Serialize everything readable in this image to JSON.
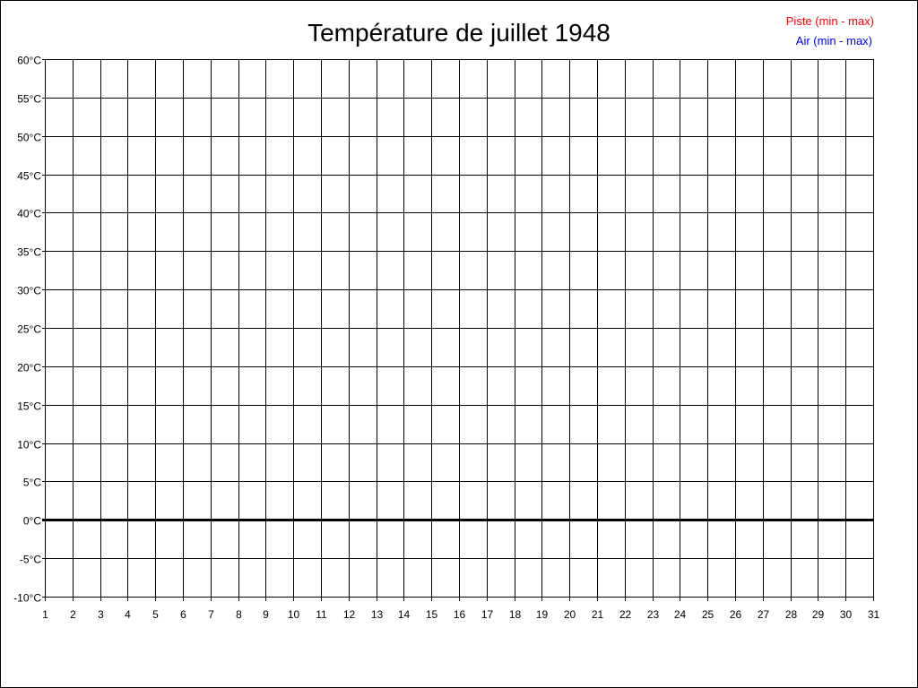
{
  "chart_data": {
    "type": "line",
    "title": "Température de juillet 1948",
    "xlabel": "",
    "ylabel": "",
    "x_ticks": [
      1,
      2,
      3,
      4,
      5,
      6,
      7,
      8,
      9,
      10,
      11,
      12,
      13,
      14,
      15,
      16,
      17,
      18,
      19,
      20,
      21,
      22,
      23,
      24,
      25,
      26,
      27,
      28,
      29,
      30,
      31
    ],
    "xlim": [
      1,
      31
    ],
    "ylim": [
      -10,
      60
    ],
    "y_step": 5,
    "y_unit": "°C",
    "grid": true,
    "legend_placement": "top-right",
    "series": [
      {
        "name": "Piste (min - max)",
        "color": "#ff0000",
        "values": []
      },
      {
        "name": "Air (min - max)",
        "color": "#0000ff",
        "values": []
      }
    ]
  }
}
